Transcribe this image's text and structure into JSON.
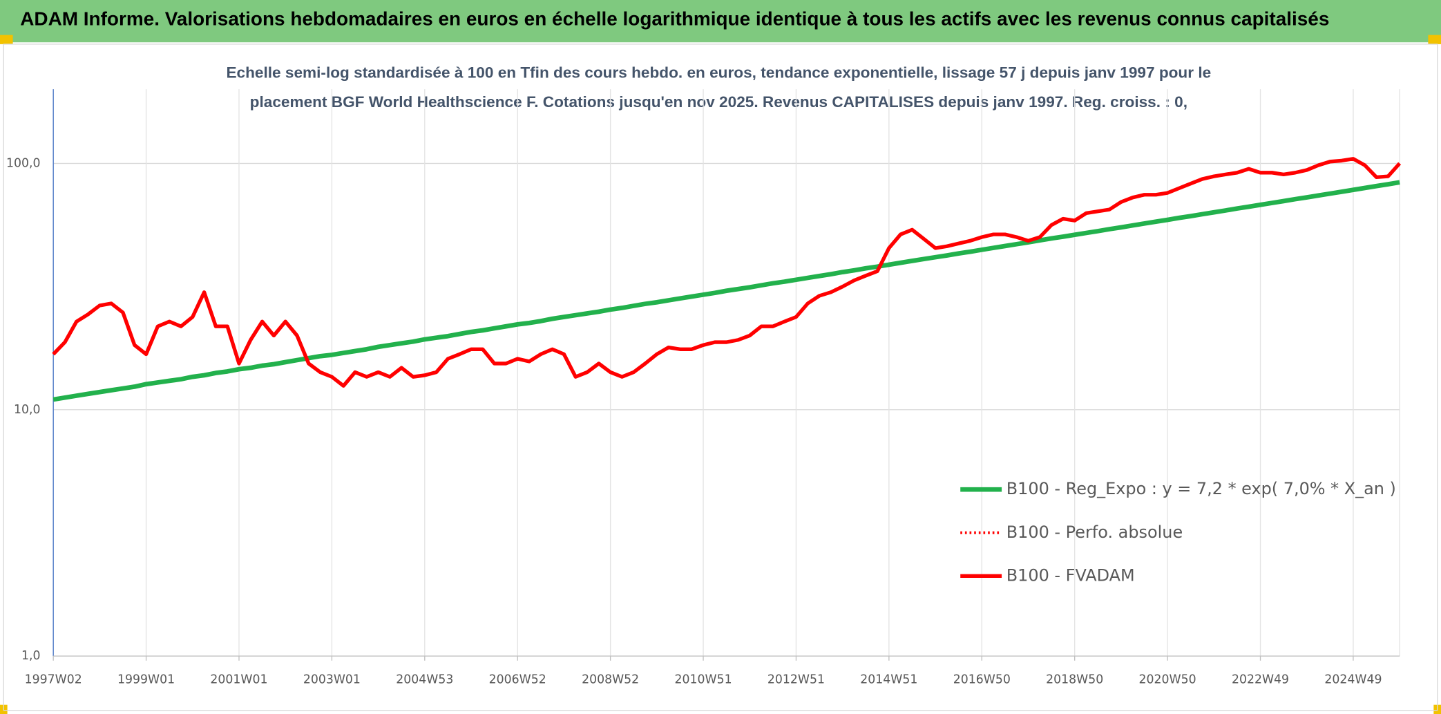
{
  "chart_data": {
    "type": "line",
    "title": "ADAM Informe. Valorisations hebdomadaires en euros en échelle logarithmique identique à tous les actifs avec les revenus connus capitalisés",
    "subtitle": [
      "Echelle semi-log standardisée à 100 en Tfin des cours hebdo. en euros, tendance exponentielle, lissage 57 j depuis janv 1997 pour le",
      "placement BGF World Healthscience F. Cotations jusqu'en nov 2025. Revenus CAPITALISES depuis janv 1997. Reg. croiss. : 0,"
    ],
    "yscale": "log",
    "ylim": [
      1,
      200
    ],
    "yticks": [
      {
        "value": 1,
        "label": "1,0"
      },
      {
        "value": 10,
        "label": "10,0"
      },
      {
        "value": 100,
        "label": "100,0"
      }
    ],
    "grid": true,
    "legend": "center right",
    "categories": [
      "1997W02",
      null,
      null,
      null,
      null,
      null,
      null,
      null,
      "1999W01",
      null,
      null,
      null,
      null,
      null,
      null,
      null,
      "2001W01",
      null,
      null,
      null,
      null,
      null,
      null,
      null,
      "2003W01",
      null,
      null,
      null,
      null,
      null,
      null,
      null,
      "2004W53",
      null,
      null,
      null,
      null,
      null,
      null,
      null,
      "2006W52",
      null,
      null,
      null,
      null,
      null,
      null,
      null,
      "2008W52",
      null,
      null,
      null,
      null,
      null,
      null,
      null,
      "2010W51",
      null,
      null,
      null,
      null,
      null,
      null,
      null,
      "2012W51",
      null,
      null,
      null,
      null,
      null,
      null,
      null,
      "2014W51",
      null,
      null,
      null,
      null,
      null,
      null,
      null,
      "2016W50",
      null,
      null,
      null,
      null,
      null,
      null,
      null,
      "2018W50",
      null,
      null,
      null,
      null,
      null,
      null,
      null,
      "2020W50",
      null,
      null,
      null,
      null,
      null,
      null,
      null,
      "2022W49",
      null,
      null,
      null,
      null,
      null,
      null,
      null,
      "2024W49",
      null,
      null,
      null,
      null
    ],
    "series": [
      {
        "name": "B100 - Reg_Expo : y = 7,2 * exp( 7,0% *  X_an )",
        "color": "#22b14c",
        "width": 5,
        "style": "solid",
        "values": [
          11.0,
          11.2,
          11.4,
          11.6,
          11.8,
          12.0,
          12.2,
          12.4,
          12.7,
          12.9,
          13.1,
          13.3,
          13.6,
          13.8,
          14.1,
          14.3,
          14.6,
          14.8,
          15.1,
          15.3,
          15.6,
          15.9,
          16.2,
          16.5,
          16.7,
          17.0,
          17.3,
          17.6,
          18.0,
          18.3,
          18.6,
          18.9,
          19.3,
          19.6,
          19.9,
          20.3,
          20.7,
          21.0,
          21.4,
          21.8,
          22.2,
          22.5,
          22.9,
          23.4,
          23.8,
          24.2,
          24.6,
          25.0,
          25.5,
          25.9,
          26.4,
          26.9,
          27.3,
          27.8,
          28.3,
          28.8,
          29.3,
          29.8,
          30.4,
          30.9,
          31.4,
          32.0,
          32.6,
          33.1,
          33.7,
          34.3,
          34.9,
          35.5,
          36.2,
          36.8,
          37.5,
          38.1,
          38.8,
          39.5,
          40.2,
          40.9,
          41.6,
          42.3,
          43.1,
          43.8,
          44.6,
          45.4,
          46.2,
          47.0,
          47.8,
          48.7,
          49.6,
          50.4,
          51.3,
          52.2,
          53.1,
          54.1,
          55.0,
          56.0,
          57.0,
          58.0,
          59.0,
          60.1,
          61.1,
          62.2,
          63.3,
          64.4,
          65.6,
          66.7,
          67.9,
          69.1,
          70.3,
          71.6,
          72.8,
          74.1,
          75.4,
          76.7,
          78.1,
          79.5,
          80.9,
          82.3,
          83.8
        ]
      },
      {
        "name": "B100 - Perfo. absolue",
        "color": "#ff0000",
        "width": 3,
        "style": "dotted",
        "values": [
          16.8,
          18.8,
          22.8,
          24.4,
          26.5,
          27.0,
          24.8,
          18.3,
          16.8,
          21.8,
          22.8,
          21.8,
          23.8,
          30.0,
          21.8,
          21.8,
          15.4,
          19.2,
          22.8,
          20.0,
          22.8,
          20.0,
          15.4,
          14.2,
          13.6,
          12.5,
          14.2,
          13.6,
          14.2,
          13.6,
          14.8,
          13.6,
          13.8,
          14.2,
          16.1,
          16.8,
          17.6,
          17.6,
          15.4,
          15.4,
          16.1,
          15.7,
          16.8,
          17.6,
          16.8,
          13.6,
          14.2,
          15.4,
          14.2,
          13.6,
          14.2,
          15.4,
          16.8,
          17.9,
          17.6,
          17.6,
          18.3,
          18.8,
          18.8,
          19.2,
          20.0,
          21.8,
          21.8,
          22.8,
          23.8,
          27.0,
          29.0,
          30.0,
          31.6,
          33.5,
          35.0,
          36.5,
          45.3,
          51.5,
          53.8,
          49.4,
          45.3,
          46.1,
          47.3,
          48.5,
          50.2,
          51.5,
          51.5,
          50.2,
          48.5,
          50.2,
          56.2,
          59.6,
          58.6,
          62.8,
          63.9,
          65.0,
          69.7,
          72.7,
          74.6,
          74.6,
          75.9,
          79.3,
          82.8,
          86.4,
          88.6,
          90.2,
          91.7,
          95.0,
          91.7,
          91.7,
          90.2,
          91.7,
          94.0,
          98.3,
          101.7,
          102.6,
          104.4,
          98.3,
          87.9,
          88.6,
          100.0
        ]
      },
      {
        "name": "B100 - FVADAM",
        "color": "#ff0000",
        "width": 4,
        "style": "solid",
        "values": [
          16.8,
          18.8,
          22.8,
          24.4,
          26.5,
          27.0,
          24.8,
          18.3,
          16.8,
          21.8,
          22.8,
          21.8,
          23.8,
          30.0,
          21.8,
          21.8,
          15.4,
          19.2,
          22.8,
          20.0,
          22.8,
          20.0,
          15.4,
          14.2,
          13.6,
          12.5,
          14.2,
          13.6,
          14.2,
          13.6,
          14.8,
          13.6,
          13.8,
          14.2,
          16.1,
          16.8,
          17.6,
          17.6,
          15.4,
          15.4,
          16.1,
          15.7,
          16.8,
          17.6,
          16.8,
          13.6,
          14.2,
          15.4,
          14.2,
          13.6,
          14.2,
          15.4,
          16.8,
          17.9,
          17.6,
          17.6,
          18.3,
          18.8,
          18.8,
          19.2,
          20.0,
          21.8,
          21.8,
          22.8,
          23.8,
          27.0,
          29.0,
          30.0,
          31.6,
          33.5,
          35.0,
          36.5,
          45.3,
          51.5,
          53.8,
          49.4,
          45.3,
          46.1,
          47.3,
          48.5,
          50.2,
          51.5,
          51.5,
          50.2,
          48.5,
          50.2,
          56.2,
          59.6,
          58.6,
          62.8,
          63.9,
          65.0,
          69.7,
          72.7,
          74.6,
          74.6,
          75.9,
          79.3,
          82.8,
          86.4,
          88.6,
          90.2,
          91.7,
          95.0,
          91.7,
          91.7,
          90.2,
          91.7,
          94.0,
          98.3,
          101.7,
          102.6,
          104.4,
          98.3,
          87.9,
          88.6,
          100.0
        ]
      }
    ]
  }
}
